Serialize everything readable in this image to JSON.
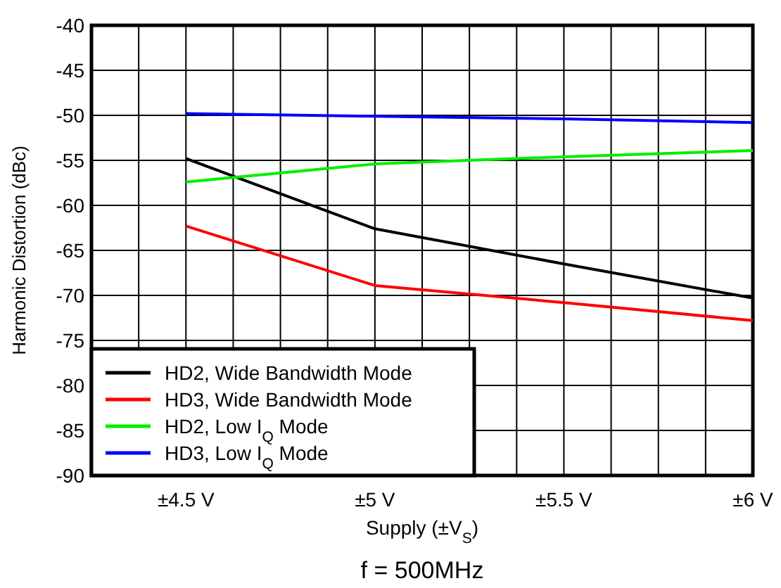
{
  "chart_data": {
    "type": "line",
    "xlabel": "Supply (±V$_{S}$)",
    "ylabel": "Harmonic Distortion (dBc)",
    "annotations": [
      "f = 500MHz"
    ],
    "x": [
      4.5,
      5,
      5.5,
      6
    ],
    "series": [
      {
        "name": "HD2, Wide Bandwidth Mode",
        "color": "#000000",
        "values": [
          -54.8,
          -62.6,
          -66.5,
          -70.3
        ]
      },
      {
        "name": "HD3, Wide Bandwidth Mode",
        "color": "#ff0000",
        "values": [
          -62.3,
          -68.9,
          -70.8,
          -72.8
        ]
      },
      {
        "name": "HD2, Low I$_{Q}$ Mode",
        "color": "#00ee00",
        "values": [
          -57.4,
          -55.4,
          -54.6,
          -53.9
        ]
      },
      {
        "name": "HD3, Low I$_{Q}$ Mode",
        "color": "#0000ff",
        "values": [
          -49.8,
          -50.1,
          -50.4,
          -50.8
        ]
      }
    ],
    "xlim": [
      4.25,
      6
    ],
    "xticks": [
      {
        "value": 4.25,
        "label": null
      },
      {
        "value": 4.375,
        "label": null
      },
      {
        "value": 4.5,
        "label": "±4.5 V"
      },
      {
        "value": 4.625,
        "label": null
      },
      {
        "value": 4.75,
        "label": null
      },
      {
        "value": 4.875,
        "label": null
      },
      {
        "value": 5,
        "label": "±5 V"
      },
      {
        "value": 5.125,
        "label": null
      },
      {
        "value": 5.25,
        "label": null
      },
      {
        "value": 5.375,
        "label": null
      },
      {
        "value": 5.5,
        "label": "±5.5 V"
      },
      {
        "value": 5.625,
        "label": null
      },
      {
        "value": 5.75,
        "label": null
      },
      {
        "value": 5.875,
        "label": null
      },
      {
        "value": 6,
        "label": "±6 V"
      }
    ],
    "ylim": [
      -90,
      -40
    ],
    "yticks": [
      -90,
      -85,
      -80,
      -75,
      -70,
      -65,
      -60,
      -55,
      -50,
      -45,
      -40
    ],
    "grid": true,
    "legend": "bottom left",
    "marker": "none",
    "line_style": "solid"
  }
}
